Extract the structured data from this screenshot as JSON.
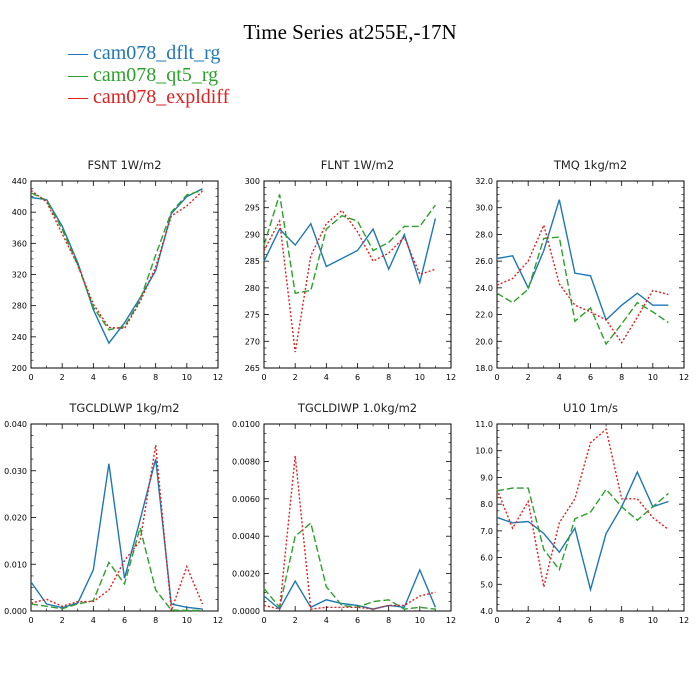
{
  "page": {
    "title": "Time Series at255E,-17N",
    "legend": [
      {
        "label": "cam078_dflt_rg",
        "color": "#1f77b4",
        "dash": "solid"
      },
      {
        "label": "cam078_qt5_rg",
        "color": "#2ca02c",
        "dash": "dash"
      },
      {
        "label": "cam078_expldiff",
        "color": "#e02020",
        "dash": "dot"
      }
    ]
  },
  "chart_data": [
    {
      "type": "line",
      "title": "FSNT   1W/m2",
      "x": [
        0,
        1,
        2,
        3,
        4,
        5,
        6,
        7,
        8,
        9,
        10,
        11
      ],
      "xlim": [
        0,
        12
      ],
      "xticks": [
        0,
        2,
        4,
        6,
        8,
        10,
        12
      ],
      "ylim": [
        200,
        440
      ],
      "yticks": [
        200,
        240,
        280,
        320,
        360,
        400,
        440
      ],
      "ytick_labels": [
        "200",
        "240",
        "280",
        "320",
        "360",
        "400",
        "440"
      ],
      "series": [
        {
          "name": "cam078_dflt_rg",
          "values": [
            419,
            416,
            382,
            335,
            275,
            232,
            258,
            290,
            325,
            398,
            420,
            430
          ]
        },
        {
          "name": "cam078_qt5_rg",
          "values": [
            425,
            415,
            378,
            332,
            278,
            249,
            253,
            287,
            345,
            400,
            422,
            428
          ]
        },
        {
          "name": "cam078_expldiff",
          "values": [
            428,
            413,
            372,
            332,
            282,
            252,
            251,
            285,
            330,
            395,
            408,
            427
          ]
        }
      ]
    },
    {
      "type": "line",
      "title": "FLNT   1W/m2",
      "x": [
        0,
        1,
        2,
        3,
        4,
        5,
        6,
        7,
        8,
        9,
        10,
        11
      ],
      "xlim": [
        0,
        12
      ],
      "xticks": [
        0,
        2,
        4,
        6,
        8,
        10,
        12
      ],
      "ylim": [
        265,
        300
      ],
      "yticks": [
        265,
        270,
        275,
        280,
        285,
        290,
        295,
        300
      ],
      "ytick_labels": [
        "265",
        "270",
        "275",
        "280",
        "285",
        "290",
        "295",
        "300"
      ],
      "series": [
        {
          "name": "cam078_dflt_rg",
          "values": [
            285,
            291,
            288,
            292,
            284,
            285.5,
            287,
            291,
            283.5,
            290,
            281,
            293
          ]
        },
        {
          "name": "cam078_qt5_rg",
          "values": [
            288,
            297.5,
            279,
            279.5,
            291,
            293.5,
            292.5,
            287,
            288.5,
            291.5,
            291.5,
            295.5
          ]
        },
        {
          "name": "cam078_expldiff",
          "values": [
            287,
            292.5,
            268,
            286,
            292,
            294.5,
            290.5,
            285,
            286.5,
            289.5,
            282.5,
            283.5
          ]
        }
      ]
    },
    {
      "type": "line",
      "title": "TMQ   1kg/m2",
      "x": [
        0,
        1,
        2,
        3,
        4,
        5,
        6,
        7,
        8,
        9,
        10,
        11
      ],
      "xlim": [
        0,
        12
      ],
      "xticks": [
        0,
        2,
        4,
        6,
        8,
        10,
        12
      ],
      "ylim": [
        18,
        32
      ],
      "yticks": [
        18,
        20,
        22,
        24,
        26,
        28,
        30,
        32
      ],
      "ytick_labels": [
        "18.0",
        "20.0",
        "22.0",
        "24.0",
        "26.0",
        "28.0",
        "30.0",
        "32.0"
      ],
      "series": [
        {
          "name": "cam078_dflt_rg",
          "values": [
            26.2,
            26.4,
            24.0,
            26.8,
            30.6,
            25.1,
            24.9,
            21.6,
            22.7,
            23.6,
            22.7,
            22.7
          ]
        },
        {
          "name": "cam078_qt5_rg",
          "values": [
            23.6,
            22.9,
            23.9,
            27.7,
            27.8,
            21.5,
            22.5,
            19.8,
            21.3,
            22.9,
            22.2,
            21.4
          ]
        },
        {
          "name": "cam078_expldiff",
          "values": [
            24.2,
            24.7,
            26.0,
            28.7,
            24.3,
            22.7,
            22.2,
            21.6,
            19.9,
            21.8,
            23.8,
            23.5
          ]
        }
      ]
    },
    {
      "type": "line",
      "title": "TGCLDLWP   1kg/m2",
      "x": [
        0,
        1,
        2,
        3,
        4,
        5,
        6,
        7,
        8,
        9,
        10,
        11
      ],
      "xlim": [
        0,
        12
      ],
      "xticks": [
        0,
        2,
        4,
        6,
        8,
        10,
        12
      ],
      "ylim": [
        0,
        0.04
      ],
      "yticks": [
        0,
        0.01,
        0.02,
        0.03,
        0.04
      ],
      "ytick_labels": [
        "0.000",
        "0.010",
        "0.020",
        "0.030",
        "0.040"
      ],
      "series": [
        {
          "name": "cam078_dflt_rg",
          "values": [
            0.0062,
            0.0015,
            0.0007,
            0.0017,
            0.0088,
            0.0315,
            0.007,
            0.0195,
            0.0325,
            0.0015,
            0.0008,
            0.0004
          ]
        },
        {
          "name": "cam078_qt5_rg",
          "values": [
            0.0015,
            0.001,
            0.0005,
            0.0015,
            0.0022,
            0.0104,
            0.0058,
            0.0178,
            0.0045,
            0.0002,
            0.0001,
            0.0001
          ]
        },
        {
          "name": "cam078_expldiff",
          "values": [
            0.0017,
            0.0025,
            0.001,
            0.002,
            0.002,
            0.0045,
            0.0108,
            0.015,
            0.0355,
            0.0001,
            0.0095,
            0.0015
          ]
        }
      ]
    },
    {
      "type": "line",
      "title": "TGCLDIWP   1.0kg/m2",
      "x": [
        0,
        1,
        2,
        3,
        4,
        5,
        6,
        7,
        8,
        9,
        10,
        11
      ],
      "xlim": [
        0,
        12
      ],
      "xticks": [
        0,
        2,
        4,
        6,
        8,
        10,
        12
      ],
      "ylim": [
        0,
        0.01
      ],
      "yticks": [
        0,
        0.002,
        0.004,
        0.006,
        0.008,
        0.01
      ],
      "ytick_labels": [
        "0.0000",
        "0.0020",
        "0.0040",
        "0.0060",
        "0.0080",
        "0.0100"
      ],
      "series": [
        {
          "name": "cam078_dflt_rg",
          "values": [
            0.0008,
            0.0001,
            0.0016,
            0.0002,
            0.0006,
            0.0004,
            0.0003,
            0.0001,
            0.0003,
            0.0002,
            0.0022,
            0.0002
          ]
        },
        {
          "name": "cam078_qt5_rg",
          "values": [
            0.0012,
            0.0002,
            0.004,
            0.0047,
            0.0013,
            0.0003,
            0.0002,
            0.0005,
            0.0006,
            0.0001,
            0.0002,
            0.0001
          ]
        },
        {
          "name": "cam078_expldiff",
          "values": [
            0.0003,
            0.0001,
            0.0083,
            0.0001,
            0.0002,
            0.0002,
            0.0002,
            0.0001,
            0.0003,
            0.0003,
            0.0008,
            0.001
          ]
        }
      ]
    },
    {
      "type": "line",
      "title": "U10   1m/s",
      "x": [
        0,
        1,
        2,
        3,
        4,
        5,
        6,
        7,
        8,
        9,
        10,
        11
      ],
      "xlim": [
        0,
        12
      ],
      "xticks": [
        0,
        2,
        4,
        6,
        8,
        10,
        12
      ],
      "ylim": [
        4,
        11
      ],
      "yticks": [
        4,
        5,
        6,
        7,
        8,
        9,
        10,
        11
      ],
      "ytick_labels": [
        "4.0",
        "5.0",
        "6.0",
        "7.0",
        "8.0",
        "9.0",
        "10.0",
        "11.0"
      ],
      "series": [
        {
          "name": "cam078_dflt_rg",
          "values": [
            7.5,
            7.3,
            7.35,
            6.9,
            6.2,
            7.1,
            4.8,
            6.9,
            7.9,
            9.2,
            7.9,
            8.1
          ]
        },
        {
          "name": "cam078_qt5_rg",
          "values": [
            8.5,
            8.6,
            8.6,
            6.3,
            5.55,
            7.45,
            7.7,
            8.55,
            7.9,
            7.4,
            7.9,
            8.4
          ]
        },
        {
          "name": "cam078_expldiff",
          "values": [
            8.55,
            7.1,
            8.1,
            4.9,
            7.3,
            8.2,
            10.3,
            10.8,
            8.2,
            8.2,
            7.5,
            7.05
          ]
        }
      ]
    }
  ]
}
